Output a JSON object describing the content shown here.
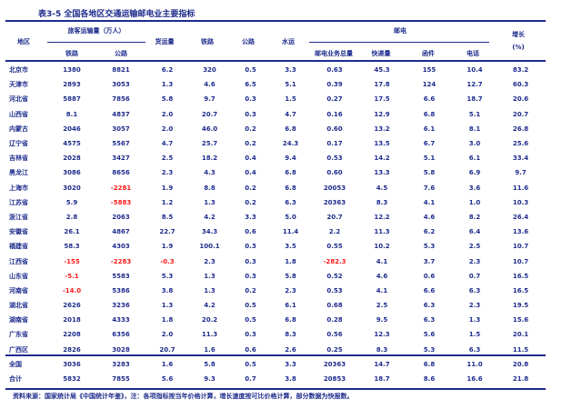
{
  "title": "表3-5 全国各地区交通运输邮电业主要指标",
  "headers": {
    "region": "地区",
    "group_passenger": "旅客运输量（万人）",
    "sub_pass_rail": "铁路",
    "sub_pass_road": "公路",
    "freight_total": "货运量",
    "rail": "铁路",
    "road": "公路",
    "water": "水运",
    "group_post": "邮电",
    "post_total": "邮电业务总量",
    "post_express": "快递量",
    "post_letter": "函件",
    "post_phone": "电话",
    "growth_top": "增长",
    "growth_bottom": "(%)"
  },
  "rows": [
    {
      "label": "北京市",
      "cells": [
        "1380",
        "8821",
        "6.2",
        "320",
        "0.5",
        "3.3",
        "0.63",
        "45.3",
        "155",
        "10.4",
        "83.2"
      ]
    },
    {
      "label": "天津市",
      "cells": [
        "2893",
        "3053",
        "1.3",
        "4.6",
        "6.5",
        "5.1",
        "0.39",
        "17.8",
        "124",
        "12.7",
        "60.3"
      ]
    },
    {
      "label": "河北省",
      "cells": [
        "5887",
        "7856",
        "5.8",
        "9.7",
        "0.3",
        "1.5",
        "0.27",
        "17.5",
        "6.6",
        "18.7",
        "20.6"
      ]
    },
    {
      "label": "山西省",
      "cells": [
        "8.1",
        "4837",
        "2.0",
        "20.7",
        "0.3",
        "4.7",
        "0.16",
        "12.9",
        "6.8",
        "5.1",
        "20.7"
      ]
    },
    {
      "label": "内蒙古",
      "cells": [
        "2046",
        "3057",
        "2.0",
        "46.0",
        "0.2",
        "6.8",
        "0.60",
        "13.2",
        "6.1",
        "8.1",
        "26.8"
      ]
    },
    {
      "label": "辽宁省",
      "cells": [
        "4575",
        "5567",
        "4.7",
        "25.7",
        "0.2",
        "24.3",
        "0.17",
        "13.5",
        "6.7",
        "3.0",
        "25.6"
      ]
    },
    {
      "label": "吉林省",
      "cells": [
        "2028",
        "3427",
        "2.5",
        "18.2",
        "0.4",
        "9.4",
        "0.53",
        "14.2",
        "5.1",
        "6.1",
        "33.4"
      ]
    },
    {
      "label": "黑龙江",
      "cells": [
        "3086",
        "8656",
        "2.3",
        "4.3",
        "0.4",
        "6.8",
        "0.60",
        "13.3",
        "5.8",
        "6.9",
        "9.7"
      ]
    },
    {
      "label": "上海市",
      "cells": [
        "3020",
        "-2281",
        "1.9",
        "8.8",
        "0.2",
        "6.8",
        "20053",
        "4.5",
        "7.6",
        "3.6",
        "11.6"
      ]
    },
    {
      "label": "江苏省",
      "cells": [
        "5.9",
        "-5883",
        "1.2",
        "1.3",
        "0.2",
        "6.3",
        "20363",
        "8.3",
        "4.1",
        "1.0",
        "10.3"
      ]
    },
    {
      "label": "浙江省",
      "cells": [
        "2.8",
        "2063",
        "8.5",
        "4.2",
        "3.3",
        "5.0",
        "20.7",
        "12.2",
        "4.6",
        "8.2",
        "26.4"
      ]
    },
    {
      "label": "安徽省",
      "cells": [
        "26.1",
        "4867",
        "22.7",
        "34.3",
        "0.6",
        "11.4",
        "2.2",
        "11.3",
        "6.2",
        "6.4",
        "13.6"
      ]
    },
    {
      "label": "福建省",
      "cells": [
        "58.3",
        "4303",
        "1.9",
        "100.1",
        "0.3",
        "3.5",
        "0.55",
        "10.2",
        "5.3",
        "2.5",
        "10.7"
      ]
    },
    {
      "label": "江西省",
      "cells": [
        "-155",
        "-2283",
        "-0.3",
        "2.3",
        "0.3",
        "1.8",
        "-282.3",
        "4.1",
        "3.7",
        "2.3",
        "10.7"
      ]
    },
    {
      "label": "山东省",
      "cells": [
        "-5.1",
        "5583",
        "5.3",
        "1.3",
        "0.3",
        "5.8",
        "0.52",
        "4.6",
        "0.6",
        "0.7",
        "16.5"
      ]
    },
    {
      "label": "河南省",
      "cells": [
        "-14.0",
        "5386",
        "3.8",
        "1.3",
        "0.2",
        "2.3",
        "0.53",
        "4.1",
        "6.6",
        "6.3",
        "16.5"
      ]
    },
    {
      "label": "湖北省",
      "cells": [
        "2626",
        "3236",
        "1.3",
        "4.2",
        "0.5",
        "6.1",
        "0.68",
        "2.5",
        "6.3",
        "2.3",
        "19.5"
      ]
    },
    {
      "label": "湖南省",
      "cells": [
        "2018",
        "4333",
        "1.8",
        "20.2",
        "0.5",
        "6.8",
        "0.28",
        "9.5",
        "6.3",
        "1.3",
        "15.6"
      ]
    },
    {
      "label": "广东省",
      "cells": [
        "2208",
        "6356",
        "2.0",
        "11.3",
        "0.3",
        "8.3",
        "0.56",
        "12.3",
        "5.6",
        "1.5",
        "20.1"
      ]
    },
    {
      "label": "广西区",
      "cells": [
        "2826",
        "3028",
        "20.7",
        "1.6",
        "0.6",
        "2.6",
        "0.25",
        "8.3",
        "5.3",
        "6.3",
        "11.5"
      ]
    }
  ],
  "summary": [
    {
      "label": "全国",
      "cells": [
        "3036",
        "3283",
        "1.6",
        "5.8",
        "0.5",
        "3.3",
        "20363",
        "14.7",
        "6.8",
        "11.0",
        "20.8"
      ]
    },
    {
      "label": "合计",
      "cells": [
        "5832",
        "7855",
        "5.6",
        "9.3",
        "0.7",
        "3.8",
        "20853",
        "18.7",
        "8.6",
        "16.6",
        "21.8"
      ]
    }
  ],
  "footer": "资料来源：国家统计局《中国统计年鉴》，注：各项指标按当年价格计算，增长速度按可比价格计算，部分数据为快报数。"
}
